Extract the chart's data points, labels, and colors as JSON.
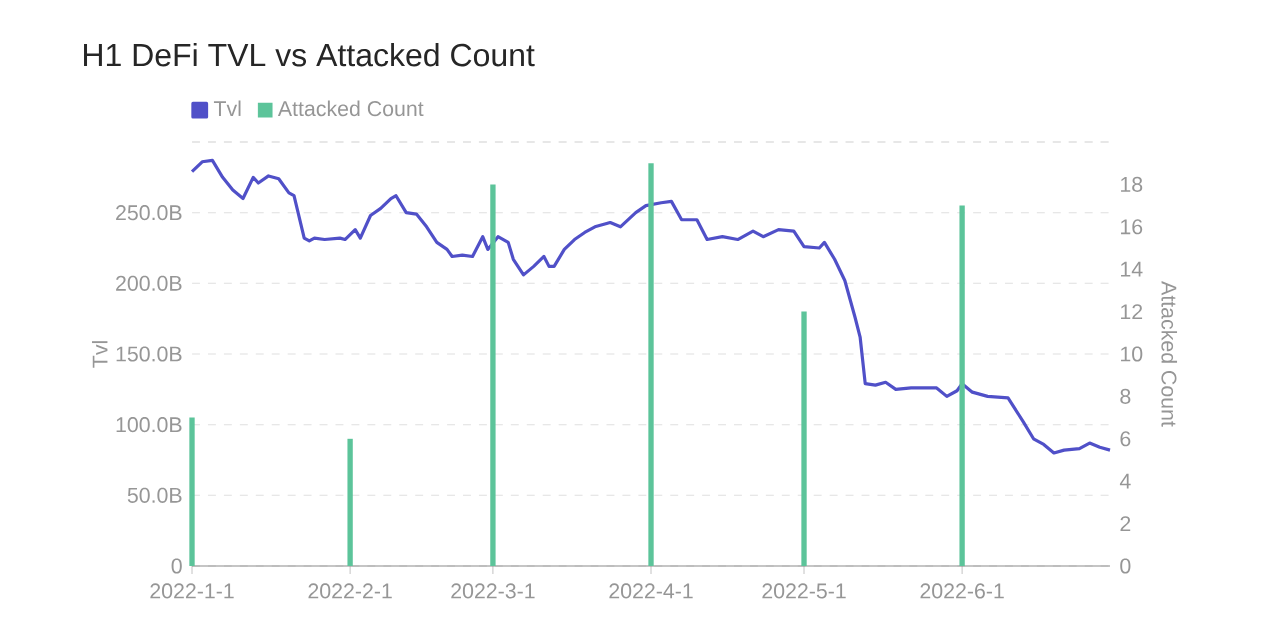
{
  "chart_data": {
    "type": "line",
    "title": "H1 DeFi TVL vs Attacked Count",
    "ylabel": "Tvl",
    "y2label": "Attacked Count",
    "xlim": [
      "2022-01-01",
      "2022-06-30"
    ],
    "xticks": [
      {
        "value": "2022-01-01",
        "label": "2022-1-1"
      },
      {
        "value": "2022-02-01",
        "label": "2022-2-1"
      },
      {
        "value": "2022-03-01",
        "label": "2022-3-1"
      },
      {
        "value": "2022-04-01",
        "label": "2022-4-1"
      },
      {
        "value": "2022-05-01",
        "label": "2022-5-1"
      },
      {
        "value": "2022-06-01",
        "label": "2022-6-1"
      }
    ],
    "ylim": [
      0,
      300
    ],
    "yticks": [
      0,
      {
        "value": 50,
        "label": "50.0B"
      },
      {
        "value": 100,
        "label": "100.0B"
      },
      {
        "value": 150,
        "label": "150.0B"
      },
      {
        "value": 200,
        "label": "200.0B"
      },
      {
        "value": 250,
        "label": "250.0B"
      },
      {
        "value": 300,
        "label": null
      }
    ],
    "y2lim": [
      0,
      20
    ],
    "y2ticks": [
      0,
      2,
      4,
      6,
      8,
      10,
      12,
      14,
      16,
      18,
      {
        "value": 20,
        "label": null
      }
    ],
    "grid": "y",
    "legend": "top left",
    "series": [
      {
        "name": "Tvl",
        "color": "#5050c8",
        "x": [
          "2022-01-01",
          "2022-01-03",
          "2022-01-05",
          "2022-01-07",
          "2022-01-09",
          "2022-01-10",
          "2022-01-11",
          "2022-01-13",
          "2022-01-14",
          "2022-01-16",
          "2022-01-18",
          "2022-01-20",
          "2022-01-21",
          "2022-01-23",
          "2022-01-24",
          "2022-01-25",
          "2022-01-27",
          "2022-01-30",
          "2022-01-31",
          "2022-02-02",
          "2022-02-03",
          "2022-02-05",
          "2022-02-07",
          "2022-02-09",
          "2022-02-10",
          "2022-02-12",
          "2022-02-14",
          "2022-02-16",
          "2022-02-18",
          "2022-02-20",
          "2022-02-21",
          "2022-02-23",
          "2022-02-25",
          "2022-02-27",
          "2022-02-28",
          "2022-03-02",
          "2022-03-04",
          "2022-03-05",
          "2022-03-07",
          "2022-03-09",
          "2022-03-11",
          "2022-03-12",
          "2022-03-13",
          "2022-03-15",
          "2022-03-17",
          "2022-03-19",
          "2022-03-21",
          "2022-03-24",
          "2022-03-26",
          "2022-03-29",
          "2022-03-31",
          "2022-04-03",
          "2022-04-05",
          "2022-04-07",
          "2022-04-10",
          "2022-04-12",
          "2022-04-15",
          "2022-04-18",
          "2022-04-21",
          "2022-04-23",
          "2022-04-26",
          "2022-04-29",
          "2022-05-01",
          "2022-05-04",
          "2022-05-05",
          "2022-05-07",
          "2022-05-09",
          "2022-05-11",
          "2022-05-12",
          "2022-05-13",
          "2022-05-15",
          "2022-05-17",
          "2022-05-19",
          "2022-05-22",
          "2022-05-25",
          "2022-05-27",
          "2022-05-29",
          "2022-05-31",
          "2022-06-01",
          "2022-06-03",
          "2022-06-06",
          "2022-06-10",
          "2022-06-13",
          "2022-06-15",
          "2022-06-17",
          "2022-06-19",
          "2022-06-21",
          "2022-06-24",
          "2022-06-26",
          "2022-06-28",
          "2022-06-30"
        ],
        "values": [
          279,
          286,
          287,
          275,
          266,
          263,
          260,
          275,
          271,
          276,
          274,
          264,
          262,
          232,
          230,
          232,
          231,
          232,
          231,
          238,
          232,
          248,
          253,
          260,
          262,
          250,
          249,
          240,
          229,
          224,
          219,
          220,
          219,
          233,
          224,
          233,
          229,
          217,
          206,
          212,
          219,
          212,
          212,
          224,
          231,
          236,
          240,
          243,
          240,
          250,
          255,
          257,
          258,
          245,
          245,
          231,
          233,
          231,
          237,
          233,
          238,
          237,
          226,
          225,
          229,
          217,
          202,
          176,
          162,
          129,
          128,
          130,
          125,
          126,
          126,
          126,
          120,
          124,
          129,
          123,
          120,
          119,
          102,
          90,
          86,
          80,
          82,
          83,
          87,
          84,
          82
        ]
      },
      {
        "name": "Attacked Count",
        "type": "bar",
        "axis": "y2",
        "color": "#5cc49a",
        "x": [
          "2022-01-01",
          "2022-02-01",
          "2022-03-01",
          "2022-04-01",
          "2022-05-01",
          "2022-06-01"
        ],
        "values": [
          7,
          6,
          18,
          19,
          12,
          17
        ]
      }
    ]
  }
}
